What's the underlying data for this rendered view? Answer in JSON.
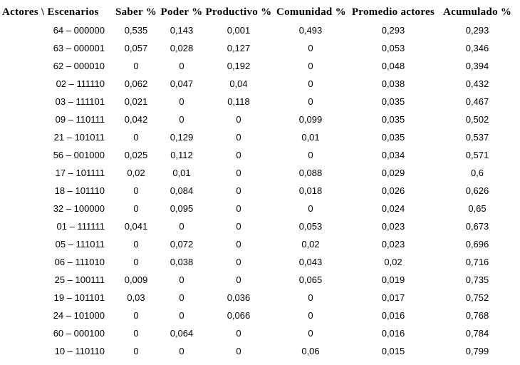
{
  "chart_data": {
    "type": "table",
    "columns": [
      "Actores \\ Escenarios",
      "Saber %",
      "Poder %",
      "Productivo %",
      "Comunidad %",
      "Promedio actores",
      "Acumulado %"
    ],
    "rows": [
      [
        "64 – 000000",
        "0,535",
        "0,143",
        "0,001",
        "0,493",
        "0,293",
        "0,293"
      ],
      [
        "63 – 000001",
        "0,057",
        "0,028",
        "0,127",
        "0",
        "0,053",
        "0,346"
      ],
      [
        "62 – 000010",
        "0",
        "0",
        "0,192",
        "0",
        "0,048",
        "0,394"
      ],
      [
        "02 – 111110",
        "0,062",
        "0,047",
        "0,04",
        "0",
        "0,038",
        "0,432"
      ],
      [
        "03 – 111101",
        "0,021",
        "0",
        "0,118",
        "0",
        "0,035",
        "0,467"
      ],
      [
        "09 – 110111",
        "0,042",
        "0",
        "0",
        "0,099",
        "0,035",
        "0,502"
      ],
      [
        "21 – 101011",
        "0",
        "0,129",
        "0",
        "0,01",
        "0,035",
        "0,537"
      ],
      [
        "56 – 001000",
        "0,025",
        "0,112",
        "0",
        "0",
        "0,034",
        "0,571"
      ],
      [
        "17 – 101111",
        "0,02",
        "0,01",
        "0",
        "0,088",
        "0,029",
        "0,6"
      ],
      [
        "18 – 101110",
        "0",
        "0,084",
        "0",
        "0,018",
        "0,026",
        "0,626"
      ],
      [
        "32 – 100000",
        "0",
        "0,095",
        "0",
        "0",
        "0,024",
        "0,65"
      ],
      [
        "01 – 111111",
        "0,041",
        "0",
        "0",
        "0,053",
        "0,023",
        "0,673"
      ],
      [
        "05 – 111011",
        "0",
        "0,072",
        "0",
        "0,02",
        "0,023",
        "0,696"
      ],
      [
        "06 – 111010",
        "0",
        "0,038",
        "0",
        "0,043",
        "0,02",
        "0,716"
      ],
      [
        "25 – 100111",
        "0,009",
        "0",
        "0",
        "0,065",
        "0,019",
        "0,735"
      ],
      [
        "19 – 101101",
        "0,03",
        "0",
        "0,036",
        "0",
        "0,017",
        "0,752"
      ],
      [
        "24 – 101000",
        "0",
        "0",
        "0,066",
        "0",
        "0,016",
        "0,768"
      ],
      [
        "60 – 000100",
        "0",
        "0,064",
        "0",
        "0",
        "0,016",
        "0,784"
      ],
      [
        "10 – 110110",
        "0",
        "0",
        "0",
        "0,06",
        "0,015",
        "0,799"
      ]
    ]
  }
}
